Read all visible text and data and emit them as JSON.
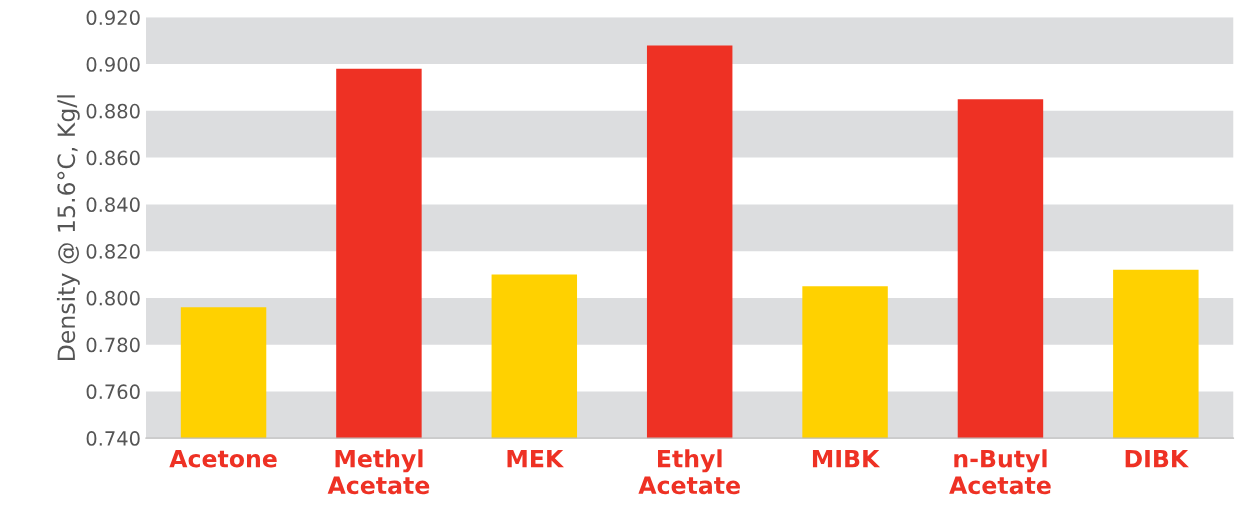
{
  "chart_data": {
    "type": "bar",
    "ylabel": "Density @ 15.6°C, Kg/l",
    "categories": [
      "Acetone",
      "Methyl\nAcetate",
      "MEK",
      "Ethyl\nAcetate",
      "MIBK",
      "n-Butyl\nAcetate",
      "DIBK"
    ],
    "values": [
      0.796,
      0.898,
      0.81,
      0.908,
      0.805,
      0.885,
      0.812
    ],
    "colors": [
      "#ffd100",
      "#ee3124",
      "#ffd100",
      "#ee3124",
      "#ffd100",
      "#ee3124",
      "#ffd100"
    ],
    "ylim": [
      0.74,
      0.92
    ],
    "yticks": [
      {
        "value": 0.74,
        "label": "0.740"
      },
      {
        "value": 0.76,
        "label": "0.760"
      },
      {
        "value": 0.78,
        "label": "0.780"
      },
      {
        "value": 0.8,
        "label": "0.800"
      },
      {
        "value": 0.82,
        "label": "0.820"
      },
      {
        "value": 0.84,
        "label": "0.840"
      },
      {
        "value": 0.86,
        "label": "0.860"
      },
      {
        "value": 0.88,
        "label": "0.880"
      },
      {
        "value": 0.9,
        "label": "0.900"
      },
      {
        "value": 0.92,
        "label": "0.920"
      }
    ],
    "bands": [
      {
        "axis": "y",
        "from": 0.74,
        "to": 0.76,
        "color": "#dcdddf"
      },
      {
        "axis": "y",
        "from": 0.78,
        "to": 0.8,
        "color": "#dcdddf"
      },
      {
        "axis": "y",
        "from": 0.82,
        "to": 0.84,
        "color": "#dcdddf"
      },
      {
        "axis": "y",
        "from": 0.86,
        "to": 0.88,
        "color": "#dcdddf"
      },
      {
        "axis": "y",
        "from": 0.9,
        "to": 0.92,
        "color": "#dcdddf"
      }
    ]
  }
}
